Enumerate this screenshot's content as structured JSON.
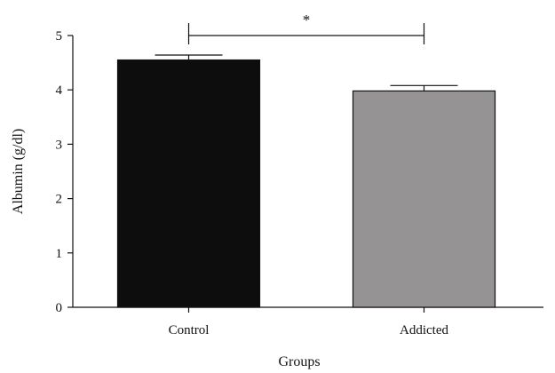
{
  "chart_data": {
    "type": "bar",
    "title": "",
    "xlabel": "Groups",
    "ylabel": "Albumin (g/dl)",
    "categories": [
      "Control",
      "Addicted"
    ],
    "values": [
      4.55,
      3.98
    ],
    "errors": [
      0.09,
      0.1
    ],
    "ylim": [
      0,
      5
    ],
    "yticks": [
      "0",
      "1",
      "2",
      "3",
      "4",
      "5"
    ],
    "grid": false,
    "legend": "none",
    "bar_colors": [
      "#0d0d0d",
      "#959393"
    ],
    "significance": {
      "between": [
        "Control",
        "Addicted"
      ],
      "label": "*",
      "y": 5
    }
  }
}
